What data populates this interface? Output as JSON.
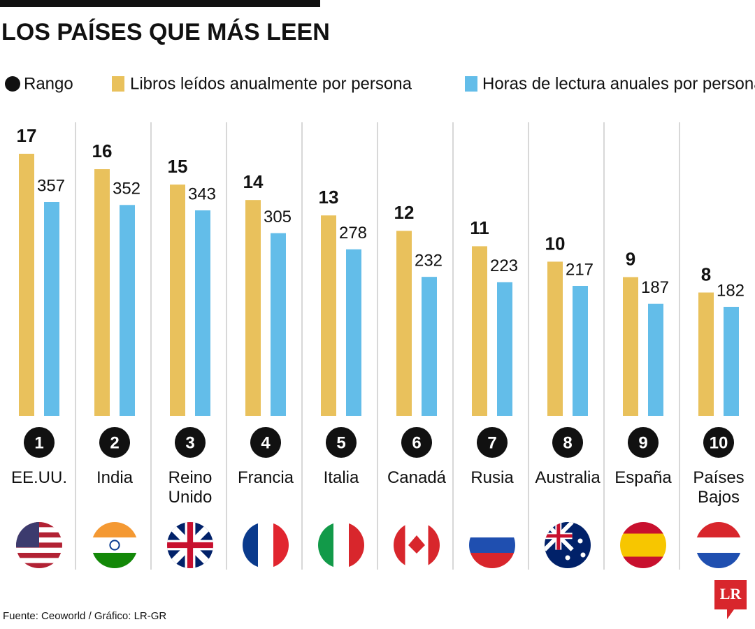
{
  "chart_data": {
    "type": "bar",
    "title": "LOS PAÍSES QUE MÁS LEEN",
    "rank_legend": "Rango",
    "categories": [
      "EE.UU.",
      "India",
      "Reino Unido",
      "Francia",
      "Italia",
      "Canadá",
      "Rusia",
      "Australia",
      "España",
      "Países Bajos"
    ],
    "ranks": [
      1,
      2,
      3,
      4,
      5,
      6,
      7,
      8,
      9,
      10
    ],
    "series": [
      {
        "name": "Libros leídos anualmente por persona",
        "color": "#e9c15c",
        "values": [
          17,
          16,
          15,
          14,
          13,
          12,
          11,
          10,
          9,
          8
        ]
      },
      {
        "name": "Horas de lectura anuales por persona",
        "color": "#63bde9",
        "values": [
          357,
          352,
          343,
          305,
          278,
          232,
          223,
          217,
          187,
          182
        ]
      }
    ],
    "source": "Fuente: Ceoworld / Gráfico: LR-GR",
    "logo": "LR"
  }
}
